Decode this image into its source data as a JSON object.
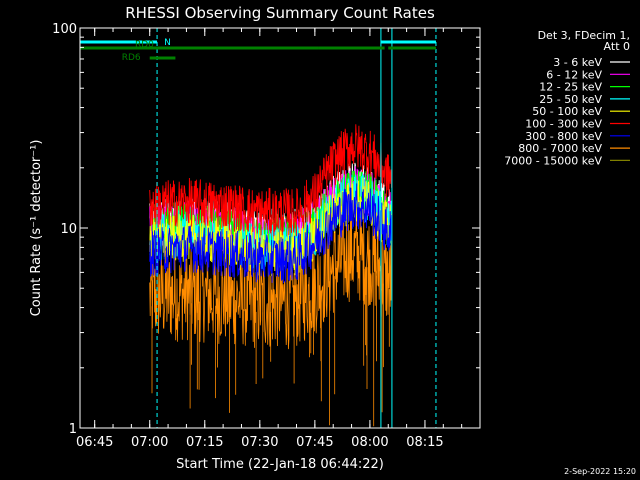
{
  "chart_data": {
    "type": "line",
    "title": "RHESSI Observing Summary Count Rates",
    "xlabel": "Start Time (22-Jan-18 06:44:22)",
    "ylabel": "Count Rate (s⁻¹ detector⁻¹)",
    "yscale": "log",
    "ylim": [
      1,
      100
    ],
    "xlim": [
      "06:41",
      "08:30"
    ],
    "x_ticks": [
      "06:45",
      "07:00",
      "07:15",
      "07:30",
      "07:45",
      "08:00",
      "08:15"
    ],
    "y_ticks": [
      "1",
      "10",
      "100"
    ],
    "legend_header": [
      "Det 3, FDecim 1,",
      "Att 0"
    ],
    "legend_position": "right",
    "colors": {
      "background": "#000000",
      "axes": "#ffffff",
      "night_lines": "#00ffff",
      "rd_lines": "#008000"
    },
    "series": [
      {
        "name": "3 - 6 keV",
        "color": "#ffffff",
        "x": [
          "07:00",
          "07:10",
          "07:20",
          "07:30",
          "07:40",
          "07:45",
          "07:50",
          "07:55",
          "08:00",
          "08:05"
        ],
        "y": [
          10.5,
          11,
          10.5,
          9.5,
          9.5,
          11,
          14,
          16.5,
          15.5,
          12
        ]
      },
      {
        "name": "6 - 12 keV",
        "color": "#ff00ff",
        "x": [
          "07:00",
          "07:10",
          "07:20",
          "07:30",
          "07:40",
          "07:45",
          "07:50",
          "07:55",
          "08:00",
          "08:05"
        ],
        "y": [
          10,
          10.5,
          10,
          9,
          9,
          10.5,
          13.5,
          15.5,
          15,
          11.5
        ]
      },
      {
        "name": "12 - 25 keV",
        "color": "#00ff00",
        "x": [
          "07:00",
          "07:10",
          "07:20",
          "07:30",
          "07:40",
          "07:45",
          "07:50",
          "07:55",
          "08:00",
          "08:05"
        ],
        "y": [
          9.5,
          10,
          9.5,
          8.5,
          8.5,
          10,
          13,
          15,
          14.5,
          11
        ]
      },
      {
        "name": "25 - 50 keV",
        "color": "#00ffff",
        "x": [
          "07:00",
          "07:10",
          "07:20",
          "07:30",
          "07:40",
          "07:45",
          "07:50",
          "07:55",
          "08:00",
          "08:05"
        ],
        "y": [
          9,
          9.5,
          9,
          8,
          8,
          9.5,
          12.5,
          14.5,
          14,
          10.5
        ]
      },
      {
        "name": "50 - 100 keV",
        "color": "#ffff00",
        "x": [
          "07:00",
          "07:10",
          "07:20",
          "07:30",
          "07:40",
          "07:45",
          "07:50",
          "07:55",
          "08:00",
          "08:05"
        ],
        "y": [
          8.5,
          9,
          8.5,
          7.5,
          7.5,
          9,
          12,
          14,
          13.5,
          10
        ]
      },
      {
        "name": "100 - 300 keV",
        "color": "#ff0000",
        "x": [
          "07:00",
          "07:10",
          "07:20",
          "07:30",
          "07:40",
          "07:45",
          "07:50",
          "07:55",
          "08:00",
          "08:05"
        ],
        "y": [
          13,
          13.5,
          13,
          12,
          12,
          14.5,
          21,
          26,
          24,
          18
        ]
      },
      {
        "name": "300 - 800 keV",
        "color": "#0000ff",
        "x": [
          "07:00",
          "07:10",
          "07:20",
          "07:30",
          "07:40",
          "07:45",
          "07:50",
          "07:55",
          "08:00",
          "08:05"
        ],
        "y": [
          7.5,
          8,
          7.5,
          7,
          7,
          8.5,
          11,
          13,
          12.5,
          9.5
        ]
      },
      {
        "name": "800 - 7000 keV",
        "color": "#ff8c00",
        "x": [
          "07:00",
          "07:10",
          "07:20",
          "07:30",
          "07:40",
          "07:45",
          "07:50",
          "07:55",
          "08:00",
          "08:05"
        ],
        "y": [
          4.5,
          4.7,
          4.5,
          4.2,
          4.3,
          5,
          6.3,
          7.5,
          7,
          5.5
        ]
      },
      {
        "name": "7000 - 15000 keV",
        "color": "#808000",
        "x": [
          "07:00",
          "07:10",
          "07:20",
          "07:30",
          "07:40",
          "07:45",
          "07:50",
          "07:55",
          "08:00",
          "08:05"
        ],
        "y": [
          10,
          10.5,
          10,
          9,
          9,
          10.5,
          13,
          15,
          14.5,
          11
        ]
      }
    ],
    "night_markers": [
      {
        "label": "N",
        "start": "06:41",
        "end": "07:02"
      },
      {
        "label": "",
        "start": "08:03",
        "end": "08:18"
      }
    ],
    "rd_markers": [
      {
        "label": "RD0",
        "segments": [
          [
            "06:41",
            "07:46"
          ],
          [
            "07:46",
            "08:04"
          ],
          [
            "08:05",
            "08:18"
          ]
        ]
      },
      {
        "label": "RD6",
        "segments": [
          [
            "07:00",
            "07:07"
          ]
        ]
      }
    ],
    "dashed_lines": [
      "07:02",
      "08:18"
    ],
    "solid_lines": [
      "06:41",
      "08:03",
      "08:06"
    ]
  },
  "timestamp": "2-Sep-2022 15:20"
}
